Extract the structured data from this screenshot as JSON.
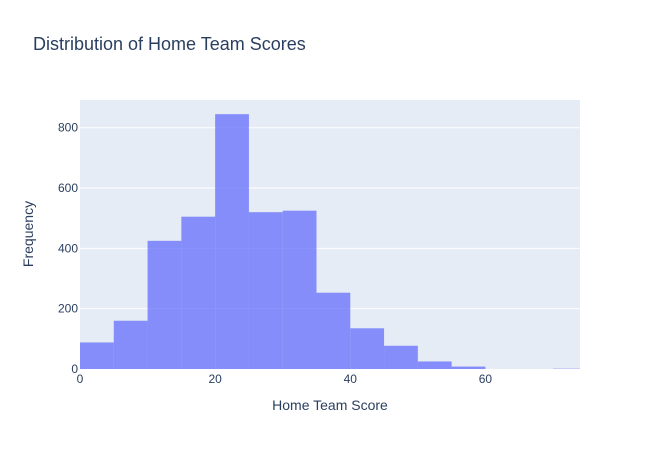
{
  "chart_data": {
    "type": "bar",
    "title": "Distribution of Home Team Scores",
    "xlabel": "Home Team Score",
    "ylabel": "Frequency",
    "bin_width": 5,
    "bins": [
      {
        "start": 0,
        "end": 5,
        "count": 88
      },
      {
        "start": 5,
        "end": 10,
        "count": 160
      },
      {
        "start": 10,
        "end": 15,
        "count": 425
      },
      {
        "start": 15,
        "end": 20,
        "count": 505
      },
      {
        "start": 20,
        "end": 25,
        "count": 845
      },
      {
        "start": 25,
        "end": 30,
        "count": 520
      },
      {
        "start": 30,
        "end": 35,
        "count": 525
      },
      {
        "start": 35,
        "end": 40,
        "count": 253
      },
      {
        "start": 40,
        "end": 45,
        "count": 135
      },
      {
        "start": 45,
        "end": 50,
        "count": 77
      },
      {
        "start": 50,
        "end": 55,
        "count": 25
      },
      {
        "start": 55,
        "end": 60,
        "count": 8
      },
      {
        "start": 60,
        "end": 65,
        "count": 0
      },
      {
        "start": 65,
        "end": 70,
        "count": 0
      },
      {
        "start": 70,
        "end": 75,
        "count": 1
      }
    ],
    "xlim": [
      0,
      74
    ],
    "ylim": [
      0,
      892
    ],
    "xticks": [
      0,
      20,
      40,
      60
    ],
    "yticks": [
      0,
      200,
      400,
      600,
      800
    ],
    "bar_color": "#636efa",
    "bar_opacity": 0.75,
    "plot_bgcolor": "#e5ecf6",
    "grid": true,
    "legend": "none"
  }
}
